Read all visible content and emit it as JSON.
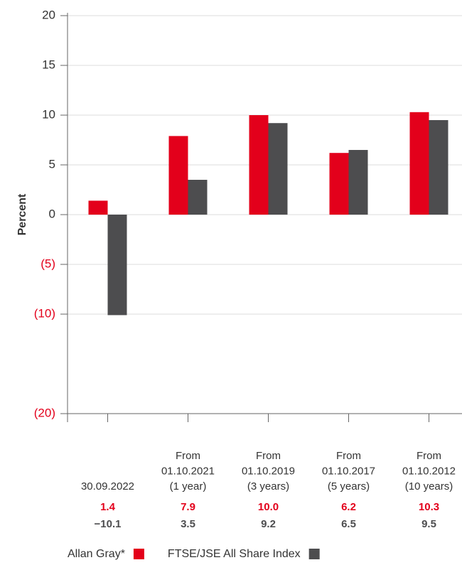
{
  "chart_data": {
    "type": "bar",
    "y_label": "Percent",
    "categories": [
      [
        "30.09.2022"
      ],
      [
        "From",
        "01.10.2021",
        "(1 year)"
      ],
      [
        "From",
        "01.10.2019",
        "(3 years)"
      ],
      [
        "From",
        "01.10.2017",
        "(5 years)"
      ],
      [
        "From",
        "01.10.2012",
        "(10 years)"
      ]
    ],
    "series": [
      {
        "name": "Allan Gray*",
        "color": "#e3001b",
        "values": [
          1.4,
          7.9,
          10.0,
          6.2,
          10.3
        ],
        "value_labels": [
          "1.4",
          "7.9",
          "10.0",
          "6.2",
          "10.3"
        ]
      },
      {
        "name": "FTSE/JSE All Share Index",
        "color": "#4d4d4f",
        "values": [
          -10.1,
          3.5,
          9.2,
          6.5,
          9.5
        ],
        "value_labels": [
          "−10.1",
          "3.5",
          "9.2",
          "6.5",
          "9.5"
        ]
      }
    ],
    "ylim": [
      -20,
      20
    ],
    "yticks": [
      20,
      15,
      10,
      5,
      0,
      {
        "value": -5,
        "label": "(5)"
      },
      {
        "value": -10,
        "label": "(10)"
      },
      {
        "value": -20,
        "label": "(20)"
      }
    ],
    "negative_tick_color": "#e3001b",
    "grid": true
  }
}
